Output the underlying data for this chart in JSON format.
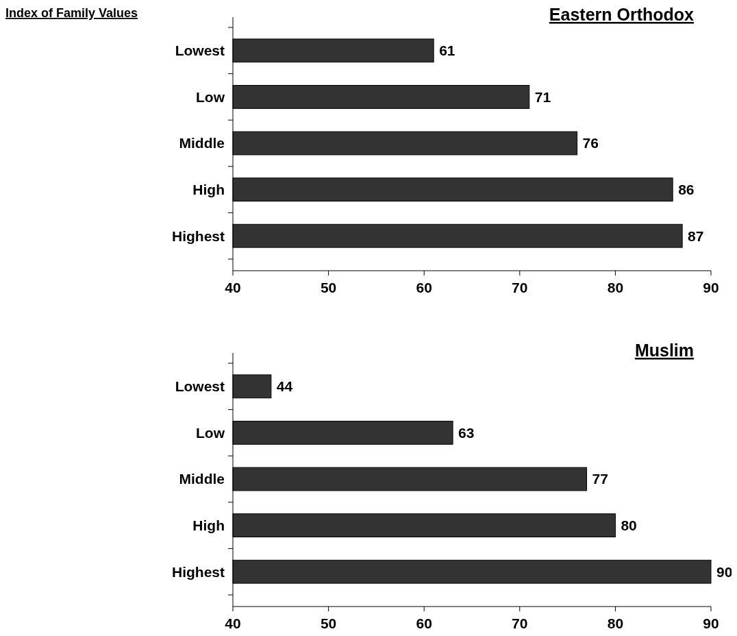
{
  "chart_data": [
    {
      "type": "bar",
      "orientation": "horizontal",
      "title": "Eastern Orthodox",
      "ylabel": "Index of Family Values",
      "categories": [
        "Lowest",
        "Low",
        "Middle",
        "High",
        "Highest"
      ],
      "values": [
        61,
        71,
        76,
        86,
        87
      ],
      "color": "#333333",
      "xlim": [
        40,
        90
      ],
      "xticks": [
        40,
        50,
        60,
        70,
        80,
        90
      ],
      "data_labels": true
    },
    {
      "type": "bar",
      "orientation": "horizontal",
      "title": "Muslim",
      "categories": [
        "Lowest",
        "Low",
        "Middle",
        "High",
        "Highest"
      ],
      "values": [
        44,
        63,
        77,
        80,
        90
      ],
      "color": "#333333",
      "xlim": [
        40,
        90
      ],
      "xticks": [
        40,
        50,
        60,
        70,
        80,
        90
      ],
      "data_labels": true
    }
  ]
}
